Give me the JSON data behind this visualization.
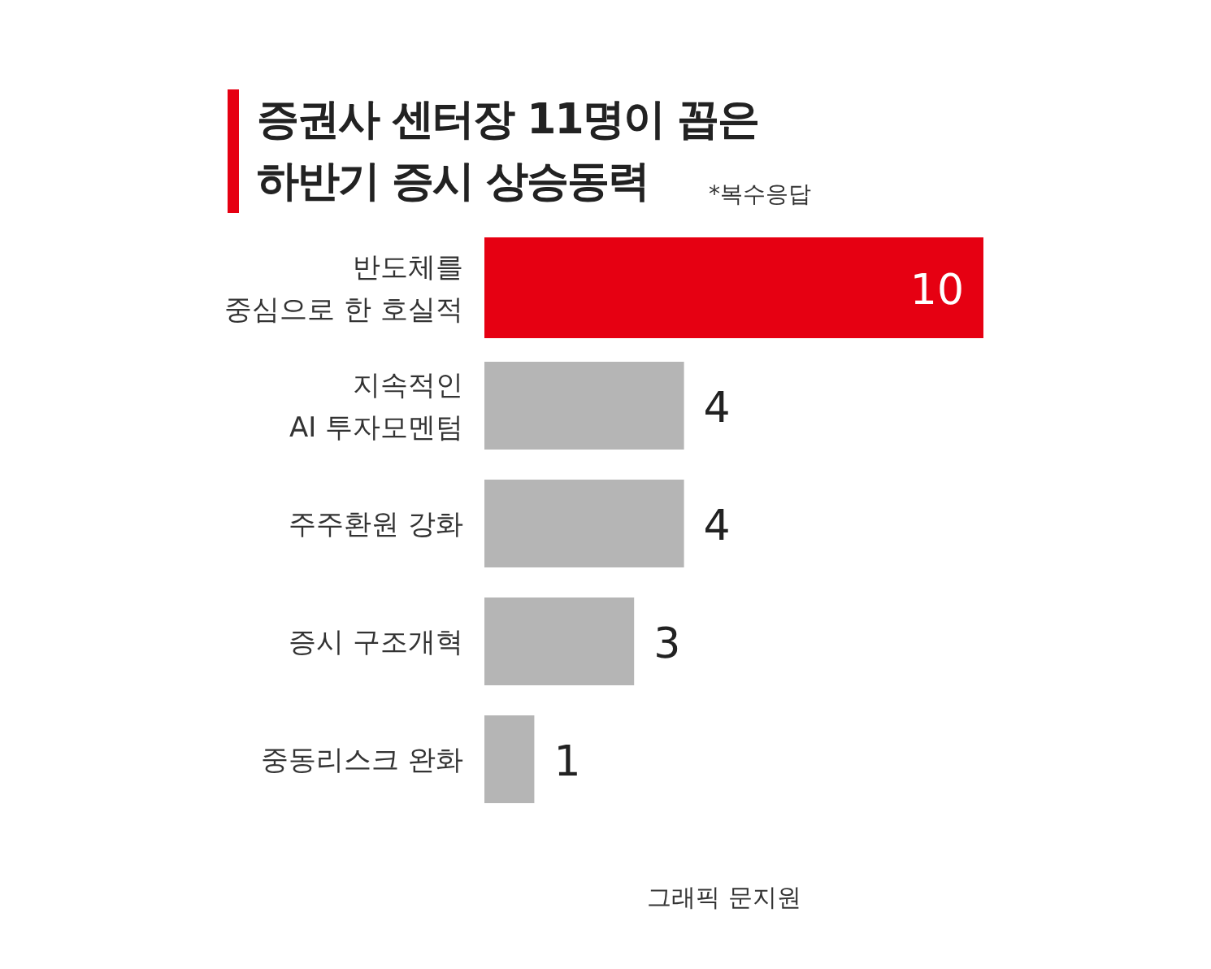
{
  "chart_data": {
    "type": "bar",
    "orientation": "horizontal",
    "title": "증권사 센터장 11명이 꼽은\n하반기 증시 상승동력",
    "subtitle": "*복수응답",
    "categories": [
      "반도체를\n중심으로 한 호실적",
      "지속적인\nAI 투자모멘텀",
      "주주환원 강화",
      "증시 구조개혁",
      "중동리스크 완화"
    ],
    "values": [
      10,
      4,
      4,
      3,
      1
    ],
    "colors": [
      "#e60012",
      "#b5b5b5",
      "#b5b5b5",
      "#b5b5b5",
      "#b5b5b5"
    ],
    "data_labels": true,
    "annotations": [
      "그래픽 문지원"
    ]
  }
}
